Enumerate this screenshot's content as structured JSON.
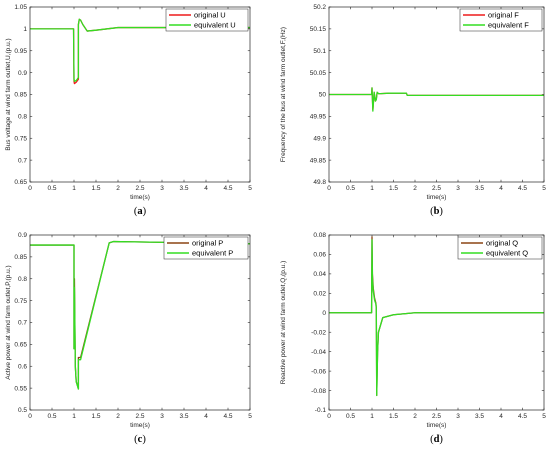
{
  "chart_data": [
    {
      "id": "a",
      "type": "line",
      "caption": "(a)",
      "xlabel": "time(s)",
      "ylabel": "Bus voltage at wind farm outlet,U,(p.u.)",
      "xlim": [
        0,
        5
      ],
      "ylim": [
        0.65,
        1.05
      ],
      "xticks": [
        "0",
        "0.5",
        "1",
        "1.5",
        "2",
        "2.5",
        "3",
        "3.5",
        "4",
        "4.5",
        "5"
      ],
      "yticks": [
        "0.65",
        "0.7",
        "0.75",
        "0.8",
        "0.85",
        "0.9",
        "0.95",
        "1",
        "1.05"
      ],
      "xtick_values": [
        0,
        0.5,
        1,
        1.5,
        2,
        2.5,
        3,
        3.5,
        4,
        4.5,
        5
      ],
      "ytick_values": [
        0.65,
        0.7,
        0.75,
        0.8,
        0.85,
        0.9,
        0.95,
        1,
        1.05
      ],
      "grid": false,
      "legend_position": "top-right",
      "series": [
        {
          "name": "original U",
          "color": "#ee1c1c",
          "x": [
            0,
            0.99,
            1.0,
            1.01,
            1.05,
            1.08,
            1.1,
            1.1,
            1.12,
            1.15,
            1.2,
            1.3,
            1.5,
            2.0,
            3.0,
            5.0
          ],
          "y": [
            1.0,
            1.0,
            0.88,
            0.875,
            0.878,
            0.882,
            0.885,
            1.01,
            1.022,
            1.02,
            1.01,
            0.995,
            0.997,
            1.003,
            1.003,
            1.003
          ]
        },
        {
          "name": "equivalent U",
          "color": "#33dd22",
          "x": [
            0,
            0.99,
            1.0,
            1.01,
            1.05,
            1.08,
            1.1,
            1.1,
            1.12,
            1.15,
            1.2,
            1.3,
            1.5,
            2.0,
            3.0,
            5.0
          ],
          "y": [
            1.0,
            1.0,
            0.885,
            0.88,
            0.882,
            0.886,
            0.889,
            1.01,
            1.022,
            1.02,
            1.01,
            0.995,
            0.997,
            1.003,
            1.003,
            1.003
          ]
        }
      ]
    },
    {
      "id": "b",
      "type": "line",
      "caption": "(b)",
      "xlabel": "time(s)",
      "ylabel": "Frequency of the bus at wind farm outlet,F,(Hz)",
      "xlim": [
        0,
        5
      ],
      "ylim": [
        49.8,
        50.2
      ],
      "xticks": [
        "0",
        "0.5",
        "1",
        "1.5",
        "2",
        "2.5",
        "3",
        "3.5",
        "4",
        "4.5",
        "5"
      ],
      "yticks": [
        "49.8",
        "49.85",
        "49.9",
        "49.95",
        "50",
        "50.05",
        "50.1",
        "50.15",
        "50.2"
      ],
      "xtick_values": [
        0,
        0.5,
        1,
        1.5,
        2,
        2.5,
        3,
        3.5,
        4,
        4.5,
        5
      ],
      "ytick_values": [
        49.8,
        49.85,
        49.9,
        49.95,
        50,
        50.05,
        50.1,
        50.15,
        50.2
      ],
      "grid": false,
      "legend_position": "top-right",
      "series": [
        {
          "name": "original F",
          "color": "#ee1c1c",
          "x": [
            0,
            0.99,
            1.0,
            1.02,
            1.05,
            1.08,
            1.1,
            1.12,
            1.15,
            1.2,
            1.4,
            1.8,
            1.82,
            2.5,
            5.0
          ],
          "y": [
            50.0,
            50.0,
            50.015,
            49.965,
            50.005,
            49.985,
            49.99,
            50.005,
            50.002,
            50.002,
            50.003,
            50.003,
            49.998,
            49.998,
            49.998
          ]
        },
        {
          "name": "equivalent F",
          "color": "#33dd22",
          "x": [
            0,
            0.99,
            1.0,
            1.02,
            1.05,
            1.08,
            1.1,
            1.12,
            1.15,
            1.2,
            1.4,
            1.8,
            1.82,
            2.5,
            5.0
          ],
          "y": [
            50.0,
            50.0,
            50.015,
            49.962,
            50.005,
            49.985,
            49.988,
            50.005,
            50.002,
            50.002,
            50.003,
            50.003,
            49.998,
            49.998,
            49.998
          ]
        }
      ]
    },
    {
      "id": "c",
      "type": "line",
      "caption": "(c)",
      "xlabel": "time(s)",
      "ylabel": "Active power at wind farm outlet,P,(p.u.)",
      "xlim": [
        0,
        5
      ],
      "ylim": [
        0.5,
        0.9
      ],
      "xticks": [
        "0",
        "0.5",
        "1",
        "1.5",
        "2",
        "2.5",
        "3",
        "3.5",
        "4",
        "4.5",
        "5"
      ],
      "yticks": [
        "0.5",
        "0.55",
        "0.6",
        "0.65",
        "0.7",
        "0.75",
        "0.8",
        "0.85",
        "0.9"
      ],
      "xtick_values": [
        0,
        0.5,
        1,
        1.5,
        2,
        2.5,
        3,
        3.5,
        4,
        4.5,
        5
      ],
      "ytick_values": [
        0.5,
        0.55,
        0.6,
        0.65,
        0.7,
        0.75,
        0.8,
        0.85,
        0.9
      ],
      "grid": false,
      "legend_position": "top-right",
      "series": [
        {
          "name": "original P",
          "color": "#8b4513",
          "x": [
            0,
            1.0,
            1.0,
            1.01,
            1.03,
            1.05,
            1.08,
            1.1,
            1.1,
            1.15,
            1.8,
            1.9,
            5.0
          ],
          "y": [
            0.877,
            0.877,
            0.64,
            0.8,
            0.6,
            0.565,
            0.555,
            0.548,
            0.62,
            0.62,
            0.882,
            0.885,
            0.88
          ]
        },
        {
          "name": "equivalent P",
          "color": "#33dd22",
          "x": [
            0,
            1.0,
            1.0,
            1.01,
            1.03,
            1.05,
            1.08,
            1.1,
            1.1,
            1.15,
            1.8,
            1.9,
            5.0
          ],
          "y": [
            0.877,
            0.877,
            0.64,
            0.78,
            0.6,
            0.565,
            0.555,
            0.548,
            0.615,
            0.615,
            0.882,
            0.885,
            0.88
          ]
        }
      ]
    },
    {
      "id": "d",
      "type": "line",
      "caption": "(d)",
      "xlabel": "time(s)",
      "ylabel": "Reactive power at wind farm outlet,Q,(p.u.)",
      "xlim": [
        0,
        5
      ],
      "ylim": [
        -0.1,
        0.08
      ],
      "xticks": [
        "0",
        "0.5",
        "1",
        "1.5",
        "2",
        "2.5",
        "3",
        "3.5",
        "4",
        "4.5",
        "5"
      ],
      "yticks": [
        "-0.1",
        "-0.08",
        "-0.06",
        "-0.04",
        "-0.02",
        "0",
        "0.02",
        "0.04",
        "0.06",
        "0.08"
      ],
      "xtick_values": [
        0,
        0.5,
        1,
        1.5,
        2,
        2.5,
        3,
        3.5,
        4,
        4.5,
        5
      ],
      "ytick_values": [
        -0.1,
        -0.08,
        -0.06,
        -0.04,
        -0.02,
        0,
        0.02,
        0.04,
        0.06,
        0.08
      ],
      "grid": false,
      "legend_position": "top-right",
      "series": [
        {
          "name": "original Q",
          "color": "#8b4513",
          "x": [
            0,
            0.99,
            1.0,
            1.01,
            1.03,
            1.06,
            1.09,
            1.1,
            1.11,
            1.13,
            1.15,
            1.25,
            1.5,
            2.0,
            5.0
          ],
          "y": [
            0,
            0,
            0.078,
            0.04,
            0.025,
            0.015,
            0.01,
            0.005,
            -0.085,
            -0.04,
            -0.02,
            -0.005,
            -0.002,
            0,
            0
          ]
        },
        {
          "name": "equivalent Q",
          "color": "#33dd22",
          "x": [
            0,
            0.99,
            1.0,
            1.01,
            1.03,
            1.06,
            1.09,
            1.1,
            1.11,
            1.13,
            1.15,
            1.25,
            1.5,
            2.0,
            5.0
          ],
          "y": [
            0,
            0,
            0.075,
            0.035,
            0.022,
            0.013,
            0.009,
            0.004,
            -0.085,
            -0.04,
            -0.02,
            -0.005,
            -0.002,
            0,
            0
          ]
        }
      ]
    }
  ]
}
